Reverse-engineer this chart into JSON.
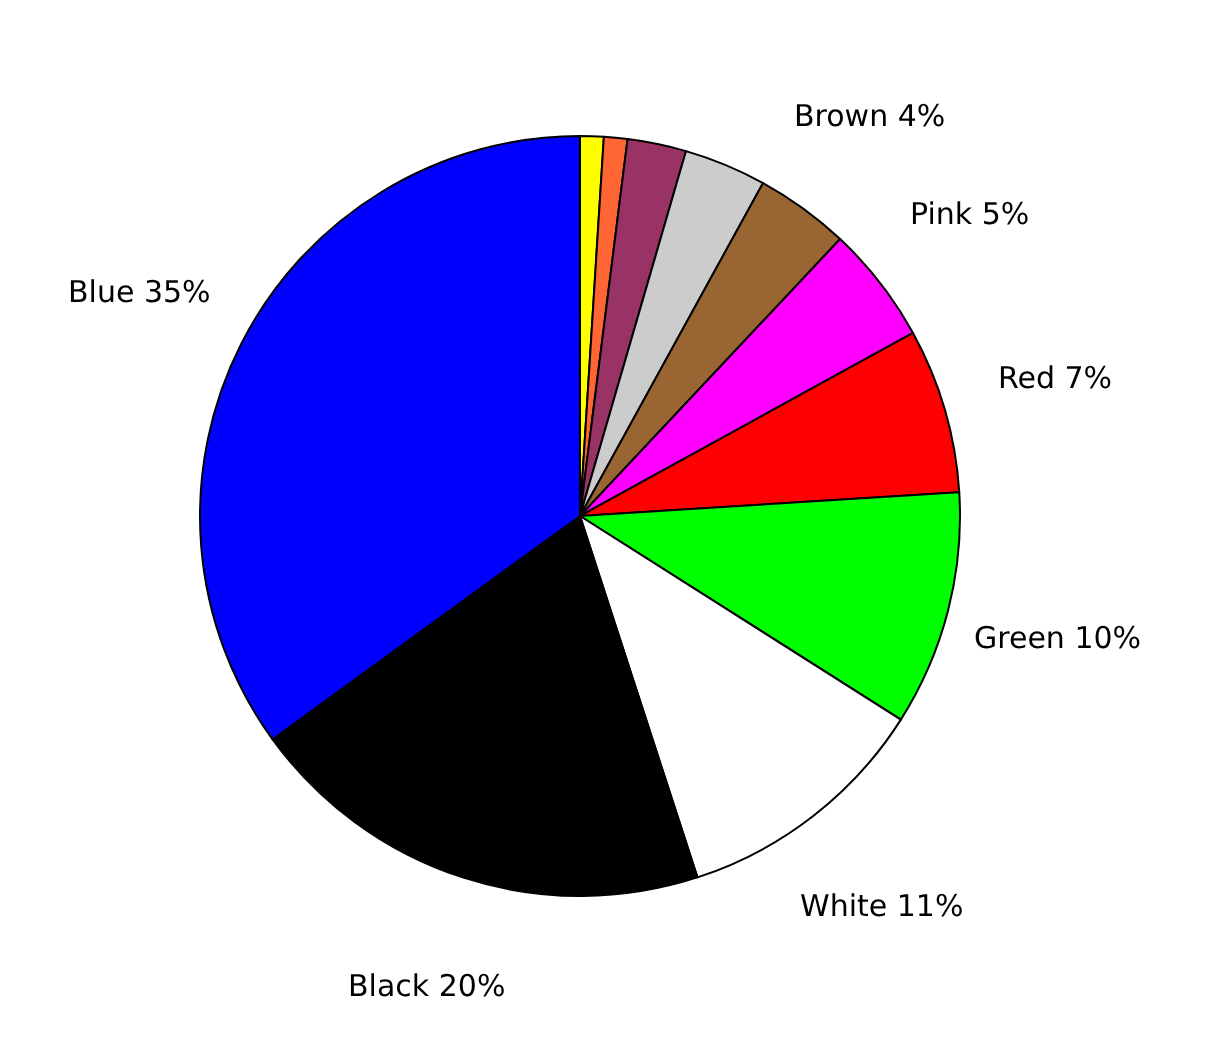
{
  "chart_data": {
    "type": "pie",
    "categories": [
      null,
      null,
      null,
      null,
      "Brown",
      "Pink",
      "Red",
      "Green",
      "White",
      "Black",
      "Blue"
    ],
    "values": [
      1,
      1,
      2.5,
      3.5,
      4,
      5,
      7,
      10,
      11,
      20,
      35
    ],
    "value_labels": [
      null,
      null,
      null,
      null,
      "4%",
      "5%",
      "7%",
      "10%",
      "11%",
      "20%",
      "35%"
    ],
    "colors": [
      "#ffff00",
      "#ff6633",
      "#993366",
      "#cccccc",
      "#996633",
      "#ff00ff",
      "#ff0000",
      "#00ff00",
      "#ffffff",
      "#000000",
      "#0000ff"
    ]
  }
}
